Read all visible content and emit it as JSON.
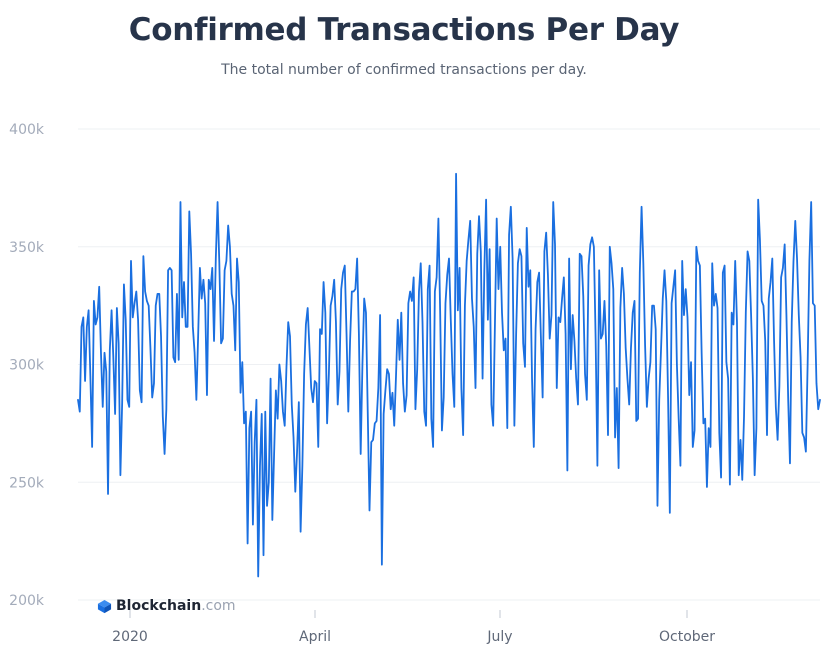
{
  "title": "Confirmed Transactions Per Day",
  "subtitle": "The total number of confirmed transactions per day.",
  "logo": {
    "name": "Blockchain",
    "tld": ".com",
    "icon": "blockchain-cube-icon"
  },
  "colors": {
    "line": "#1a6fe0",
    "grid": "#eef0f3",
    "title": "#27344a",
    "logo_icon": "#1a6fe0"
  },
  "chart_data": {
    "type": "line",
    "title": "Confirmed Transactions Per Day",
    "subtitle": "The total number of confirmed transactions per day.",
    "xlabel": "",
    "ylabel": "",
    "x_tick_labels": [
      "2020",
      "April",
      "July",
      "October"
    ],
    "y_tick_labels": [
      "200k",
      "250k",
      "300k",
      "350k",
      "400k"
    ],
    "ylim": [
      200000,
      400000
    ],
    "grid": true,
    "series": [
      {
        "values": [
          285000,
          280000,
          316000,
          320000,
          293000,
          316000,
          323000,
          295000,
          265000,
          327000,
          317000,
          320000,
          333000,
          305000,
          282000,
          305000,
          297000,
          245000,
          306000,
          323000,
          303000,
          279000,
          324000,
          309000,
          253000,
          284000,
          334000,
          319000,
          285000,
          282000,
          344000,
          320000,
          326000,
          331000,
          319000,
          289000,
          284000,
          346000,
          331000,
          327000,
          325000,
          307000,
          286000,
          292000,
          325000,
          330000,
          330000,
          312000,
          278000,
          262000,
          281000,
          340000,
          341000,
          340000,
          303000,
          301000,
          330000,
          302000,
          369000,
          320000,
          335000,
          316000,
          316000,
          365000,
          347000,
          316000,
          305000,
          285000,
          312000,
          341000,
          328000,
          336000,
          326000,
          287000,
          336000,
          332000,
          341000,
          310000,
          345000,
          369000,
          343000,
          309000,
          311000,
          340000,
          344000,
          359000,
          350000,
          330000,
          325000,
          306000,
          345000,
          335000,
          288000,
          301000,
          275000,
          280000,
          224000,
          273000,
          280000,
          232000,
          267000,
          285000,
          210000,
          257000,
          279000,
          219000,
          280000,
          240000,
          250000,
          294000,
          234000,
          262000,
          289000,
          277000,
          300000,
          293000,
          280000,
          274000,
          299000,
          318000,
          312000,
          283000,
          269000,
          246000,
          263000,
          284000,
          229000,
          257000,
          296000,
          317000,
          324000,
          307000,
          290000,
          284000,
          293000,
          292000,
          265000,
          315000,
          313000,
          335000,
          322000,
          275000,
          296000,
          325000,
          329000,
          336000,
          318000,
          283000,
          297000,
          332000,
          339000,
          342000,
          313000,
          280000,
          310000,
          331000,
          331000,
          332000,
          345000,
          313000,
          262000,
          300000,
          328000,
          322000,
          280000,
          238000,
          267000,
          268000,
          275000,
          276000,
          290000,
          321000,
          215000,
          279000,
          289000,
          298000,
          296000,
          281000,
          288000,
          274000,
          295000,
          319000,
          302000,
          322000,
          292000,
          280000,
          287000,
          326000,
          331000,
          327000,
          337000,
          281000,
          298000,
          331000,
          343000,
          318000,
          280000,
          274000,
          332000,
          342000,
          277000,
          265000,
          331000,
          337000,
          362000,
          322000,
          272000,
          286000,
          326000,
          338000,
          345000,
          319000,
          296000,
          282000,
          381000,
          323000,
          341000,
          290000,
          270000,
          325000,
          344000,
          353000,
          361000,
          328000,
          316000,
          290000,
          347000,
          363000,
          348000,
          294000,
          340000,
          370000,
          319000,
          349000,
          283000,
          274000,
          317000,
          362000,
          332000,
          350000,
          322000,
          306000,
          311000,
          273000,
          355000,
          367000,
          345000,
          274000,
          313000,
          343000,
          349000,
          346000,
          309000,
          299000,
          358000,
          333000,
          340000,
          294000,
          265000,
          315000,
          335000,
          339000,
          312000,
          286000,
          348000,
          356000,
          338000,
          311000,
          321000,
          369000,
          351000,
          290000,
          320000,
          318000,
          328000,
          337000,
          313000,
          255000,
          345000,
          298000,
          321000,
          310000,
          294000,
          283000,
          347000,
          346000,
          329000,
          296000,
          285000,
          342000,
          351000,
          354000,
          350000,
          311000,
          257000,
          340000,
          311000,
          313000,
          327000,
          308000,
          270000,
          350000,
          343000,
          332000,
          269000,
          290000,
          256000,
          324000,
          341000,
          330000,
          307000,
          294000,
          283000,
          307000,
          322000,
          327000,
          276000,
          277000,
          339000,
          367000,
          343000,
          308000,
          282000,
          294000,
          301000,
          325000,
          325000,
          315000,
          240000,
          285000,
          306000,
          328000,
          340000,
          327000,
          286000,
          237000,
          326000,
          333000,
          340000,
          300000,
          277000,
          257000,
          344000,
          321000,
          332000,
          320000,
          287000,
          301000,
          265000,
          272000,
          350000,
          344000,
          342000,
          305000,
          275000,
          277000,
          248000,
          273000,
          265000,
          343000,
          325000,
          330000,
          324000,
          271000,
          252000,
          339000,
          342000,
          301000,
          294000,
          249000,
          322000,
          317000,
          344000,
          318000,
          253000,
          268000,
          251000,
          278000,
          322000,
          348000,
          344000,
          321000,
          294000,
          253000,
          273000,
          370000,
          353000,
          327000,
          325000,
          310000,
          270000,
          328000,
          335000,
          345000,
          310000,
          282000,
          268000,
          291000,
          337000,
          341000,
          351000,
          321000,
          285000,
          258000,
          318000,
          344000,
          361000,
          345000,
          321000,
          303000,
          271000,
          269000,
          263000,
          300000,
          344000,
          369000,
          326000,
          325000,
          292000,
          281000,
          285000
        ]
      }
    ]
  }
}
